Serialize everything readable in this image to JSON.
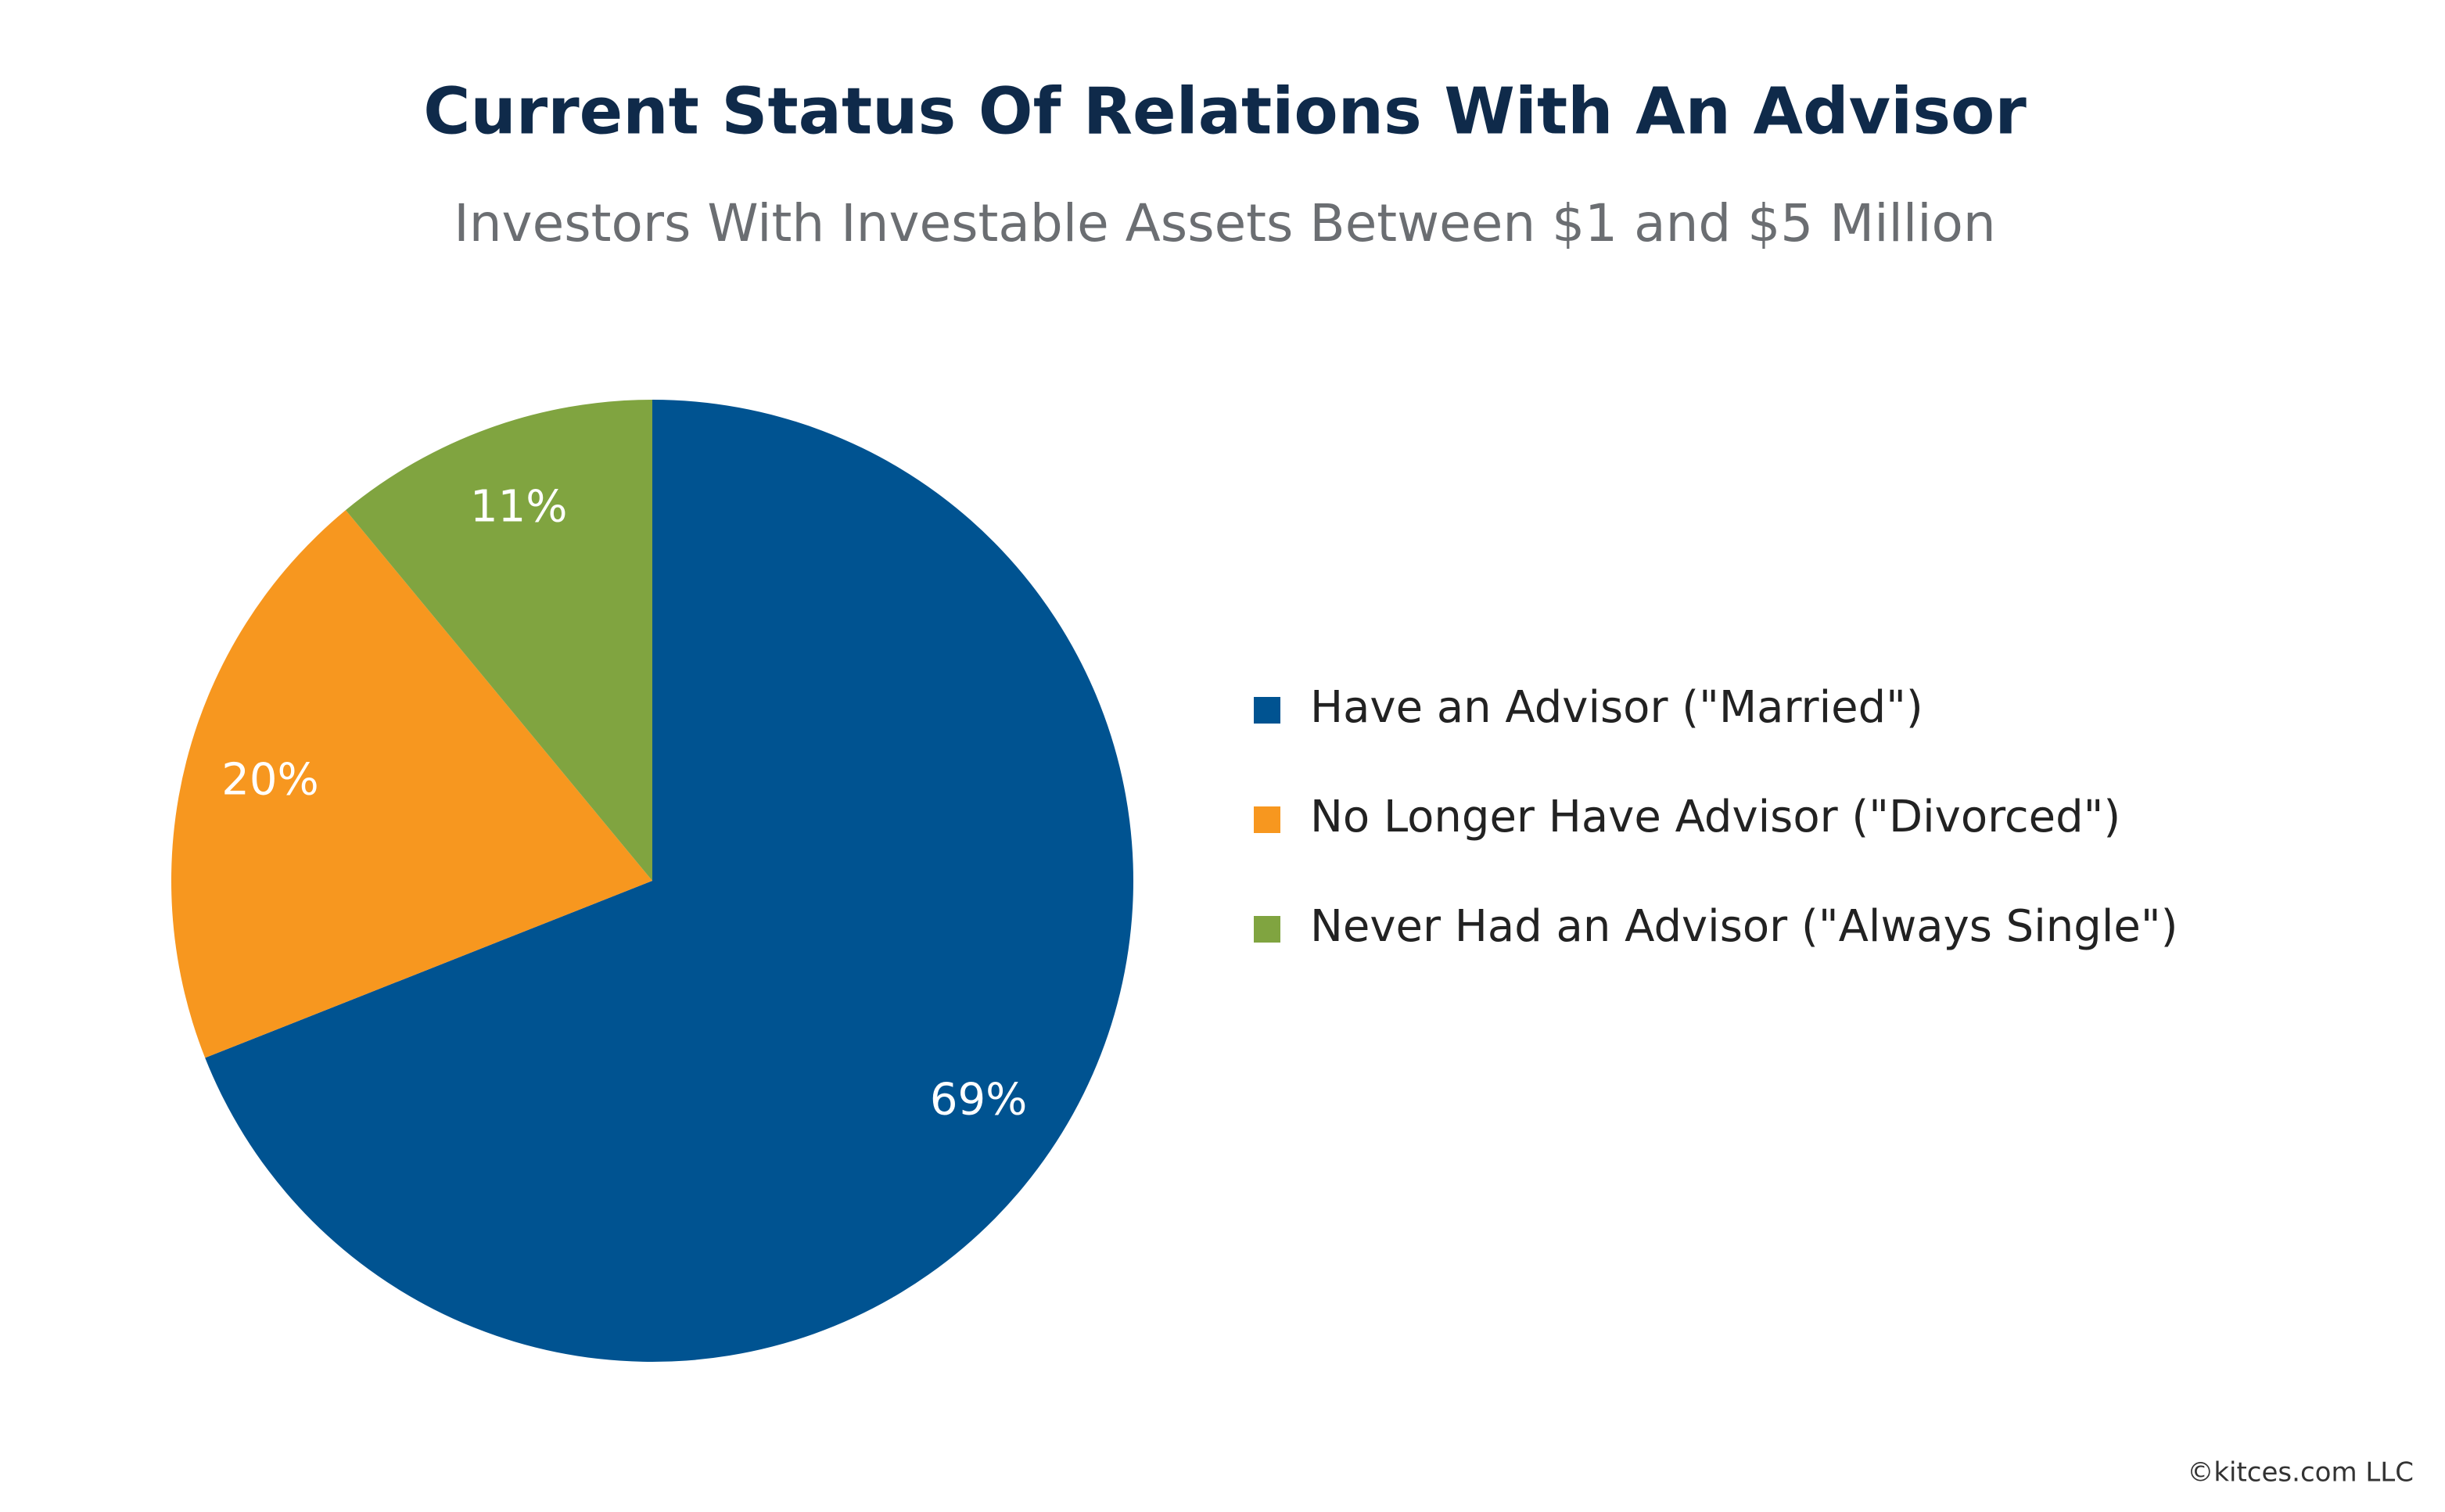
{
  "chart_data": {
    "type": "pie",
    "title": "Current Status Of Relations With An Advisor",
    "subtitle": "Investors With Investable Assets Between $1 and $5 Million",
    "categories": [
      "Have an Advisor (\"Married\")",
      "No Longer Have Advisor (\"Divorced\")",
      "Never Had an Advisor (\"Always Single\")"
    ],
    "values": [
      69,
      20,
      11
    ],
    "value_labels": [
      "69%",
      "20%",
      "11%"
    ],
    "colors": [
      "#005391",
      "#f7971f",
      "#80a440"
    ],
    "legend": "right",
    "source": "©kitces.com LLC"
  }
}
